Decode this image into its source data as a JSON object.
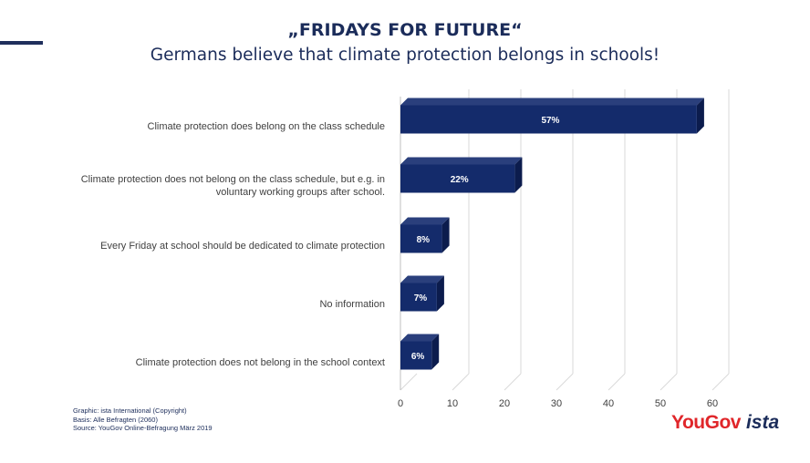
{
  "header": {
    "title": "„FRIDAYS FOR FUTURE“",
    "subtitle": "Germans believe that climate protection belongs in schools!"
  },
  "footnotes": [
    "Graphic: ista International (Copyright)",
    "Basis: Alle Befragten (2060)",
    "Source: YouGov Online-Befragung März 2019"
  ],
  "logos": {
    "yougov": "YouGov",
    "ista": "ista"
  },
  "colors": {
    "bar": "#142b6b",
    "bar_top": "#2a3f7c",
    "bar_side": "#0c1c4d",
    "grid": "#d9d9d9",
    "title": "#1b2c5a"
  },
  "chart_data": {
    "type": "bar",
    "orientation": "horizontal",
    "categories": [
      "Climate protection does belong on the class schedule",
      "Climate protection does not belong on the class schedule, but e.g. in voluntary working groups after school.",
      "Every Friday at school should be dedicated to climate protection",
      "No information",
      "Climate protection does not belong in the school context"
    ],
    "category_lines": [
      [
        "Climate protection does belong on the class schedule"
      ],
      [
        "Climate protection does not belong on the class schedule, but e.g. in",
        "voluntary working groups after school."
      ],
      [
        "Every Friday at school should be dedicated to climate protection"
      ],
      [
        "No information"
      ],
      [
        "Climate protection does not belong in the school context"
      ]
    ],
    "values": [
      57,
      22,
      8,
      7,
      6
    ],
    "data_labels": [
      "57%",
      "22%",
      "8%",
      "7%",
      "6%"
    ],
    "xlim": [
      0,
      60
    ],
    "xticks": [
      0,
      10,
      20,
      30,
      40,
      50,
      60
    ],
    "grid": true,
    "legend": "none"
  }
}
